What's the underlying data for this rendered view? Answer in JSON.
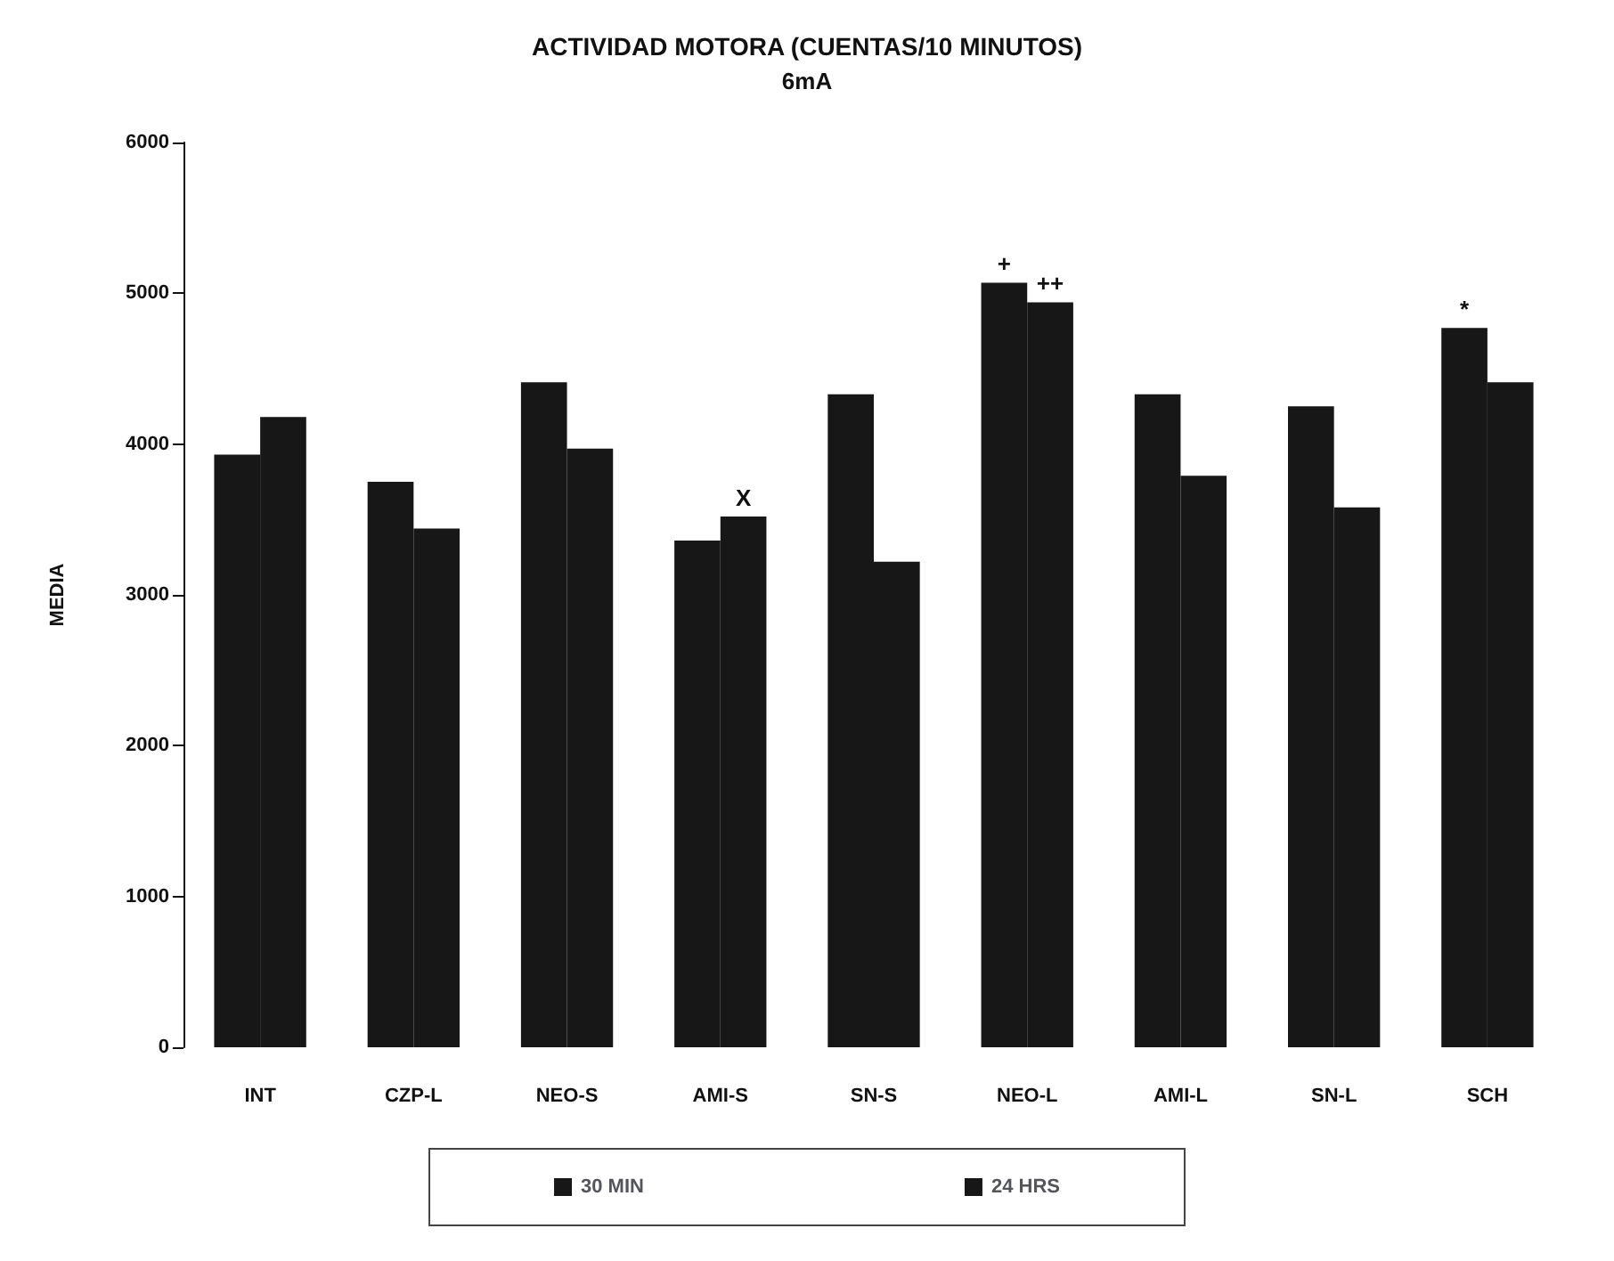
{
  "chart_data": {
    "type": "bar",
    "title": "ACTIVIDAD MOTORA (CUENTAS/10 MINUTOS)",
    "subtitle": "6mA",
    "ylabel": "MEDIA",
    "categories": [
      "INT",
      "CZP-L",
      "NEO-S",
      "AMI-S",
      "SN-S",
      "NEO-L",
      "AMI-L",
      "SN-L",
      "SCH"
    ],
    "series": [
      {
        "name": "30 MIN",
        "color": "#171717",
        "values": [
          3930,
          3750,
          4410,
          3360,
          4330,
          5070,
          4330,
          4250,
          4770
        ]
      },
      {
        "name": "24 HRS",
        "color": "#171717",
        "values": [
          4180,
          3440,
          3970,
          3520,
          3220,
          4940,
          3790,
          3580,
          4410
        ]
      }
    ],
    "ylim": [
      0,
      6000
    ],
    "yticks": [
      0,
      1000,
      2000,
      3000,
      4000,
      5000,
      6000
    ],
    "grid": false,
    "legend": "bottom",
    "annotations": [
      {
        "text": "X",
        "x": "AMI-S",
        "y": 3520
      },
      {
        "text": "+",
        "x": "NEO-L",
        "y": 5070
      },
      {
        "text": "++",
        "x": "NEO-L",
        "y": 4940
      },
      {
        "text": "*",
        "x": "SCH",
        "y": 4770
      }
    ]
  }
}
